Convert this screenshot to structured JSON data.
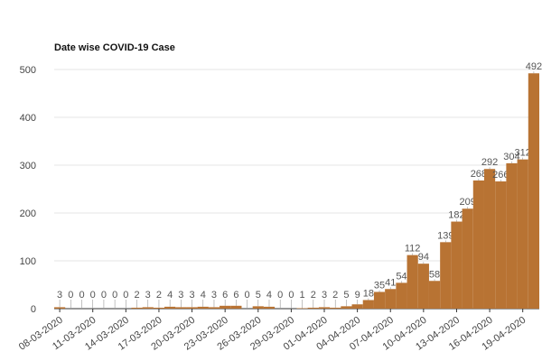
{
  "chart_data": {
    "type": "bar",
    "title": "Date wise COVID-19 Case",
    "categories": [
      "08-03-2020",
      null,
      null,
      "11-03-2020",
      null,
      null,
      "14-03-2020",
      null,
      null,
      "17-03-2020",
      null,
      null,
      "20-03-2020",
      null,
      null,
      "23-03-2020",
      null,
      null,
      "26-03-2020",
      null,
      null,
      "29-03-2020",
      null,
      null,
      "01-04-2020",
      null,
      null,
      "04-04-2020",
      null,
      null,
      "07-04-2020",
      null,
      null,
      "10-04-2020",
      null,
      null,
      "13-04-2020",
      null,
      null,
      "16-04-2020",
      null,
      null,
      "19-04-2020",
      null
    ],
    "values": [
      3,
      0,
      0,
      0,
      0,
      0,
      0,
      2,
      3,
      2,
      4,
      3,
      3,
      4,
      3,
      6,
      6,
      0,
      5,
      4,
      0,
      0,
      1,
      2,
      3,
      2,
      5,
      9,
      18,
      35,
      41,
      54,
      112,
      94,
      58,
      139,
      182,
      209,
      268,
      292,
      266,
      304,
      312,
      492
    ],
    "color": "#b87333",
    "ylim": [
      0,
      500
    ],
    "yticks": [
      0,
      100,
      200,
      300,
      400,
      500
    ],
    "grid": true
  }
}
